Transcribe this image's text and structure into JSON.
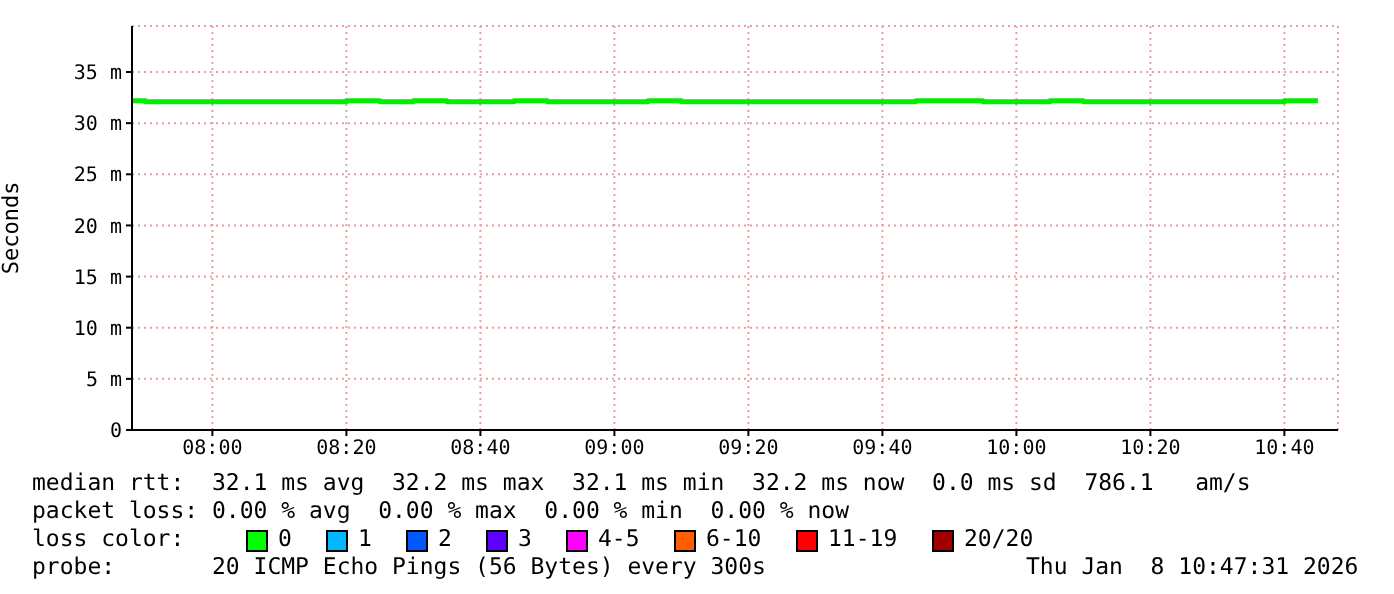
{
  "chart_data": {
    "type": "step",
    "ylabel": "Seconds",
    "x": [
      "2026-01-08T07:48",
      "2026-01-08T07:50",
      "2026-01-08T07:55",
      "2026-01-08T08:00",
      "2026-01-08T08:05",
      "2026-01-08T08:10",
      "2026-01-08T08:15",
      "2026-01-08T08:20",
      "2026-01-08T08:25",
      "2026-01-08T08:30",
      "2026-01-08T08:35",
      "2026-01-08T08:40",
      "2026-01-08T08:45",
      "2026-01-08T08:50",
      "2026-01-08T08:55",
      "2026-01-08T09:00",
      "2026-01-08T09:05",
      "2026-01-08T09:10",
      "2026-01-08T09:15",
      "2026-01-08T09:20",
      "2026-01-08T09:25",
      "2026-01-08T09:30",
      "2026-01-08T09:35",
      "2026-01-08T09:40",
      "2026-01-08T09:45",
      "2026-01-08T09:50",
      "2026-01-08T09:55",
      "2026-01-08T10:00",
      "2026-01-08T10:05",
      "2026-01-08T10:10",
      "2026-01-08T10:15",
      "2026-01-08T10:20",
      "2026-01-08T10:25",
      "2026-01-08T10:30",
      "2026-01-08T10:35",
      "2026-01-08T10:40",
      "2026-01-08T10:45"
    ],
    "series": [
      {
        "color": "#00ee00",
        "values": [
          32.2,
          32.1,
          32.1,
          32.1,
          32.1,
          32.1,
          32.1,
          32.2,
          32.1,
          32.2,
          32.1,
          32.1,
          32.2,
          32.1,
          32.1,
          32.1,
          32.2,
          32.1,
          32.1,
          32.1,
          32.1,
          32.1,
          32.1,
          32.1,
          32.2,
          32.2,
          32.1,
          32.1,
          32.2,
          32.1,
          32.1,
          32.1,
          32.1,
          32.1,
          32.1,
          32.2,
          32.2
        ]
      }
    ],
    "xlim": [
      "2026-01-08T07:48",
      "2026-01-08T10:48"
    ],
    "xticks": [
      {
        "value": "2026-01-08T08:00",
        "label": "08:00"
      },
      {
        "value": "2026-01-08T08:20",
        "label": "08:20"
      },
      {
        "value": "2026-01-08T08:40",
        "label": "08:40"
      },
      {
        "value": "2026-01-08T09:00",
        "label": "09:00"
      },
      {
        "value": "2026-01-08T09:20",
        "label": "09:20"
      },
      {
        "value": "2026-01-08T09:40",
        "label": "09:40"
      },
      {
        "value": "2026-01-08T10:00",
        "label": "10:00"
      },
      {
        "value": "2026-01-08T10:20",
        "label": "10:20"
      },
      {
        "value": "2026-01-08T10:40",
        "label": "10:40"
      }
    ],
    "ylim": [
      0,
      39.5
    ],
    "yticks": [
      0,
      {
        "value": 5,
        "label": "5 m"
      },
      {
        "value": 10,
        "label": "10 m"
      },
      {
        "value": 15,
        "label": "15 m"
      },
      {
        "value": 20,
        "label": "20 m"
      },
      {
        "value": 25,
        "label": "25 m"
      },
      {
        "value": 30,
        "label": "30 m"
      },
      {
        "value": 35,
        "label": "35 m"
      }
    ],
    "grid": true,
    "annotations": [
      "median rtt:  32.1 ms avg  32.2 ms max  32.1 ms min  32.2 ms now  0.0 ms sd  786.1   am/s",
      "packet loss: 0.00 % avg  0.00 % max  0.00 % min  0.00 % now",
      "loss color:",
      "0",
      "1",
      "2",
      "3",
      "4-5",
      "6-10",
      "11-19",
      "20/20",
      "probe:       20 ICMP Echo Pings (56 Bytes) every 300s",
      "Thu Jan  8 10:47:31 2026"
    ]
  }
}
